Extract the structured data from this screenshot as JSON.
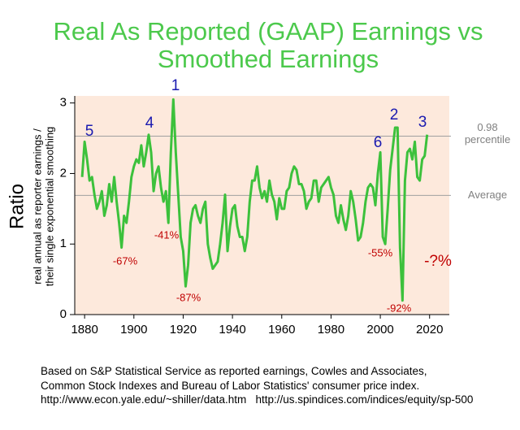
{
  "chart_data": {
    "type": "line",
    "title": "Real As Reported (GAAP) Earnings vs Smoothed Earnings",
    "ylabel": "Ratio",
    "ylabel_sub": [
      "real annual as reporter earnings /",
      "their single exponential smoothing"
    ],
    "xlim": [
      1876,
      2028
    ],
    "ylim": [
      0,
      3.1
    ],
    "xticks": [
      1880,
      1900,
      1920,
      1940,
      1960,
      1980,
      2000,
      2020
    ],
    "yticks": [
      0,
      1,
      2,
      3
    ],
    "x": [
      1879,
      1880,
      1881,
      1882,
      1883,
      1884,
      1885,
      1886,
      1887,
      1888,
      1889,
      1890,
      1891,
      1892,
      1893,
      1894,
      1895,
      1896,
      1897,
      1898,
      1899,
      1900,
      1901,
      1902,
      1903,
      1904,
      1905,
      1906,
      1907,
      1908,
      1909,
      1910,
      1911,
      1912,
      1913,
      1914,
      1915,
      1916,
      1917,
      1918,
      1919,
      1920,
      1921,
      1922,
      1923,
      1924,
      1925,
      1926,
      1927,
      1928,
      1929,
      1930,
      1931,
      1932,
      1933,
      1934,
      1935,
      1936,
      1937,
      1938,
      1939,
      1940,
      1941,
      1942,
      1943,
      1944,
      1945,
      1946,
      1947,
      1948,
      1949,
      1950,
      1951,
      1952,
      1953,
      1954,
      1955,
      1956,
      1957,
      1958,
      1959,
      1960,
      1961,
      1962,
      1963,
      1964,
      1965,
      1966,
      1967,
      1968,
      1969,
      1970,
      1971,
      1972,
      1973,
      1974,
      1975,
      1976,
      1977,
      1978,
      1979,
      1980,
      1981,
      1982,
      1983,
      1984,
      1985,
      1986,
      1987,
      1988,
      1989,
      1990,
      1991,
      1992,
      1993,
      1994,
      1995,
      1996,
      1997,
      1998,
      1999,
      2000,
      2001,
      2002,
      2003,
      2004,
      2005,
      2006,
      2007,
      2008,
      2009,
      2010,
      2011,
      2012,
      2013,
      2014,
      2015,
      2016,
      2017,
      2018,
      2019
    ],
    "series": [
      {
        "name": "Ratio",
        "color": "#3cc13c",
        "values": [
          1.95,
          2.45,
          2.2,
          1.9,
          1.95,
          1.7,
          1.5,
          1.6,
          1.75,
          1.4,
          1.55,
          1.85,
          1.6,
          1.95,
          1.6,
          1.3,
          0.95,
          1.4,
          1.3,
          1.6,
          1.95,
          2.1,
          2.2,
          2.15,
          2.4,
          2.1,
          2.3,
          2.55,
          2.3,
          1.75,
          2.0,
          2.1,
          1.8,
          1.6,
          1.75,
          1.3,
          2.3,
          3.05,
          2.3,
          1.7,
          1.1,
          0.9,
          0.4,
          0.7,
          1.3,
          1.5,
          1.55,
          1.4,
          1.3,
          1.5,
          1.6,
          1.0,
          0.8,
          0.65,
          0.7,
          0.75,
          1.0,
          1.3,
          1.7,
          0.9,
          1.25,
          1.5,
          1.55,
          1.25,
          1.1,
          1.1,
          0.9,
          1.1,
          1.6,
          1.9,
          1.9,
          2.1,
          1.8,
          1.65,
          1.75,
          1.6,
          1.9,
          1.7,
          1.6,
          1.35,
          1.65,
          1.5,
          1.5,
          1.75,
          1.8,
          2.0,
          2.1,
          2.05,
          1.85,
          1.85,
          1.75,
          1.5,
          1.6,
          1.65,
          1.9,
          1.9,
          1.6,
          1.8,
          1.85,
          1.9,
          1.95,
          1.8,
          1.7,
          1.4,
          1.3,
          1.55,
          1.35,
          1.2,
          1.4,
          1.75,
          1.6,
          1.35,
          1.05,
          1.1,
          1.3,
          1.6,
          1.8,
          1.85,
          1.8,
          1.55,
          2.0,
          2.3,
          1.1,
          1.0,
          1.5,
          2.05,
          2.35,
          2.65,
          2.65,
          0.95,
          0.2,
          1.9,
          2.3,
          2.35,
          2.2,
          2.45,
          1.95,
          1.9,
          2.2,
          2.25,
          2.55
        ]
      }
    ],
    "reference_lines": [
      {
        "value": 2.53,
        "label": "0.98 percentile"
      },
      {
        "value": 1.69,
        "label": "Average"
      }
    ],
    "annotations": [
      "1",
      "2",
      "3",
      "4",
      "5",
      "6",
      "-67%",
      "-41%",
      "-87%",
      "-55%",
      "-92%",
      "-?%"
    ],
    "notes": [
      "Based on S&P Statistical Service as reported earnings, Cowles and Associates,",
      "Common Stock Indexes and Bureau of Labor Statistics' consumer price index.",
      "http://www.econ.yale.edu/~shiller/data.htm   http://us.spindices.com/indices/equity/sp-500"
    ]
  }
}
